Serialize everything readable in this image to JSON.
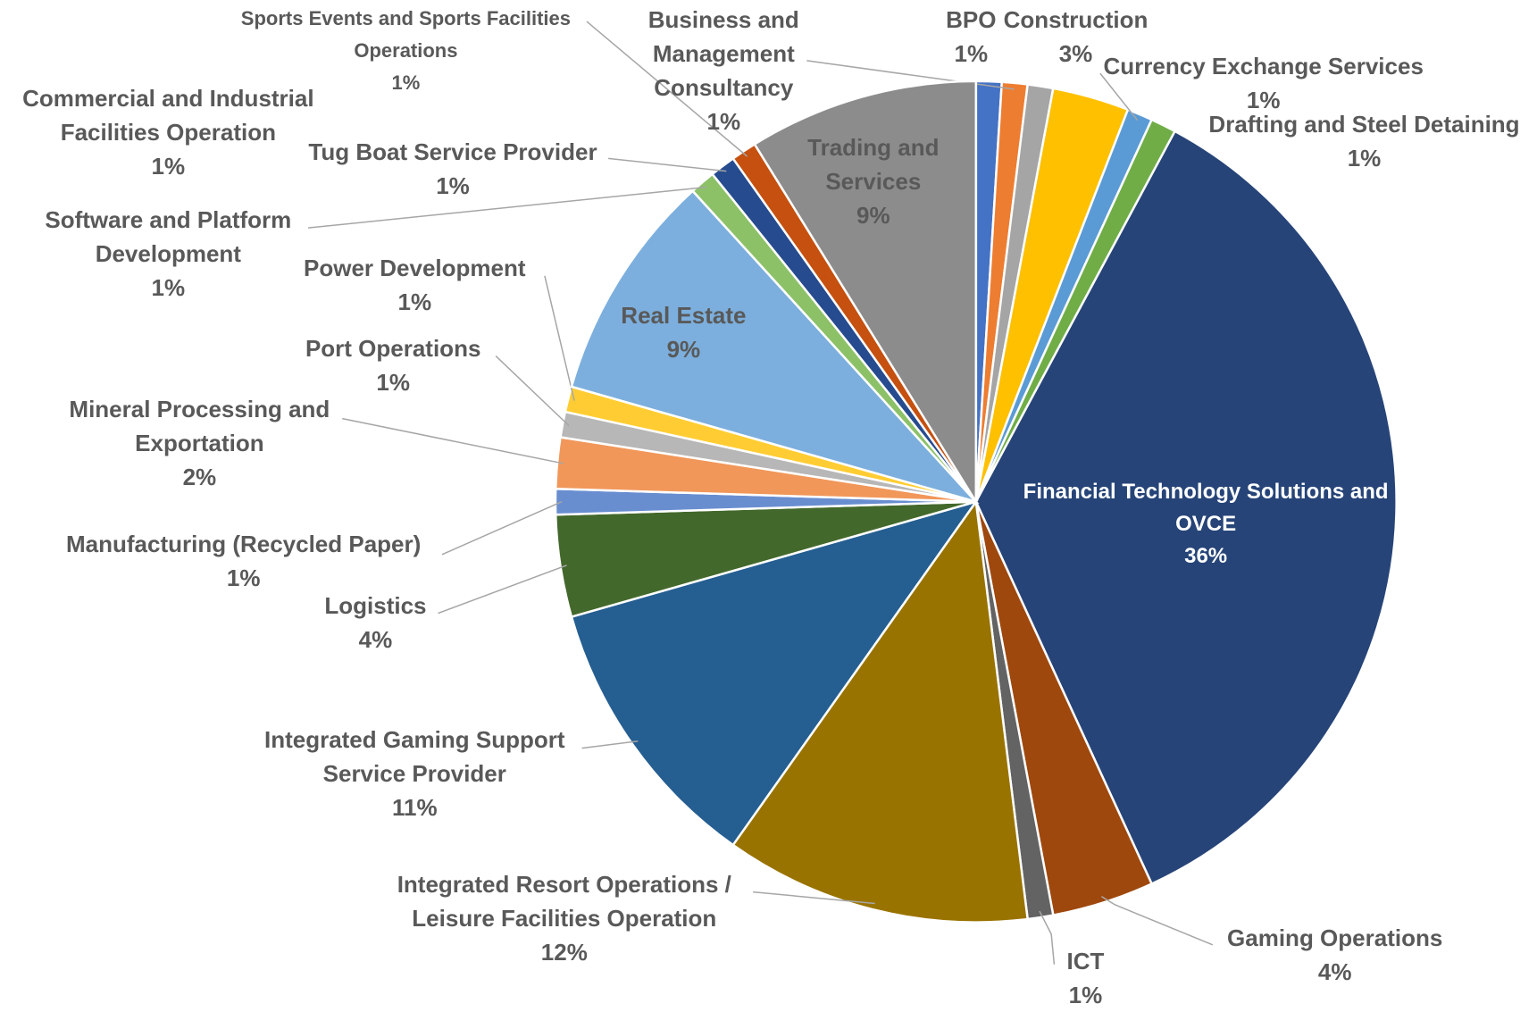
{
  "chart_data": {
    "type": "pie",
    "categories": [
      "BPO",
      "Business and Management Consultancy",
      "Commercial and Industrial Facilities Operation",
      "Construction",
      "Currency Exchange Services",
      "Drafting and Steel Detaining",
      "Financial Technology Solutions and OVCE",
      "Gaming Operations",
      "ICT",
      "Integrated Resort Operations / Leisure Facilities Operation",
      "Integrated Gaming Support Service Provider",
      "Logistics",
      "Manufacturing (Recycled Paper)",
      "Mineral Processing and Exportation",
      "Port Operations",
      "Power Development",
      "Real Estate",
      "Software and Platform Development",
      "Tug Boat Service Provider",
      "Sports Events and Sports Facilities Operations",
      "Trading and Services"
    ],
    "values": [
      1,
      1,
      1,
      3,
      1,
      1,
      36,
      4,
      1,
      12,
      11,
      4,
      1,
      2,
      1,
      1,
      9,
      1,
      1,
      1,
      9
    ],
    "value_labels": [
      "1%",
      "1%",
      "1%",
      "3%",
      "1%",
      "1%",
      "36%",
      "4%",
      "1%",
      "12%",
      "11%",
      "4%",
      "1%",
      "2%",
      "1%",
      "1%",
      "9%",
      "1%",
      "1%",
      "1%",
      "9%"
    ],
    "colors": [
      "#4472c4",
      "#ed7d31",
      "#a5a5a5",
      "#ffc000",
      "#5b9bd5",
      "#70ad47",
      "#264478",
      "#9e480e",
      "#636363",
      "#997300",
      "#255e91",
      "#43682b",
      "#698ed0",
      "#f1975a",
      "#b7b7b7",
      "#ffcd33",
      "#7cafdd",
      "#8cc168",
      "#264b8f",
      "#c5500f",
      "#8c8c8c"
    ]
  }
}
